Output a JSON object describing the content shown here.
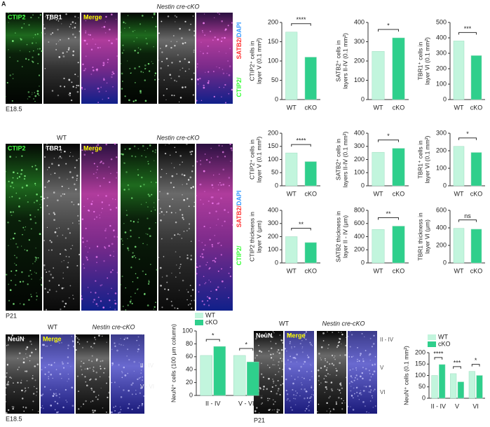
{
  "figure": {
    "label": "A",
    "e185": {
      "header": "Nestin cre-cKO",
      "channels": [
        "CTIP2",
        "TBR1",
        "Merge"
      ],
      "stage": "E18.5",
      "stain": [
        "CTIP2/",
        "TBR1/",
        "SATB2/",
        "DAPI"
      ]
    },
    "p21": {
      "headers": [
        "WT",
        "Nestin cre-cKO"
      ],
      "channels": [
        "CTIP2",
        "TBR1",
        "Merge"
      ],
      "stage": "P21",
      "stain": [
        "CTIP2/",
        "TBR1/",
        "SATB2/",
        "DAPI"
      ]
    },
    "neun_e185": {
      "headers": [
        "WT",
        "Nestin cre-cKO"
      ],
      "channels": [
        "NeuN",
        "Merge"
      ],
      "stage": "E18.5",
      "layers": [
        "II - IV",
        "V - VI"
      ]
    },
    "neun_p21": {
      "headers": [
        "WT",
        "Nestin cre-cKO"
      ],
      "channels": [
        "NeuN",
        "Merge"
      ],
      "stage": "P21",
      "layers": [
        "II - IV",
        "V",
        "VI"
      ]
    }
  },
  "chart_data": [
    {
      "type": "bar",
      "ylabel": [
        "CTIP2⁺ cells in",
        "layer V (0.1 mm²)"
      ],
      "categories": [
        "WT",
        "cKO"
      ],
      "values": [
        175,
        110
      ],
      "colors": [
        "#c2f5dd",
        "#2fcf8c"
      ],
      "significance": "****",
      "ylim": [
        0,
        200
      ],
      "yticks": [
        0,
        50,
        100,
        150,
        200
      ]
    },
    {
      "type": "bar",
      "ylabel": [
        "SATB2⁺ cells in",
        "layers II-IV (0.1 mm²)"
      ],
      "categories": [
        "WT",
        "cKO"
      ],
      "values": [
        250,
        320
      ],
      "colors": [
        "#c2f5dd",
        "#2fcf8c"
      ],
      "significance": "*",
      "ylim": [
        0,
        400
      ],
      "yticks": [
        0,
        100,
        200,
        300,
        400
      ]
    },
    {
      "type": "bar",
      "ylabel": [
        "TBR1⁺ cells in",
        "layer VI (0.1 mm²)"
      ],
      "categories": [
        "WT",
        "cKO"
      ],
      "values": [
        380,
        285
      ],
      "colors": [
        "#c2f5dd",
        "#2fcf8c"
      ],
      "significance": "***",
      "ylim": [
        0,
        500
      ],
      "yticks": [
        0,
        100,
        200,
        300,
        400,
        500
      ]
    },
    {
      "type": "bar",
      "ylabel": [
        "CTIP2⁺ cells in",
        "layer V (0.1 mm²)"
      ],
      "categories": [
        "WT",
        "cKO"
      ],
      "values": [
        125,
        92
      ],
      "colors": [
        "#c2f5dd",
        "#2fcf8c"
      ],
      "significance": "****",
      "ylim": [
        0,
        200
      ],
      "yticks": [
        0,
        50,
        100,
        150,
        200
      ]
    },
    {
      "type": "bar",
      "ylabel": [
        "SATB2⁺ cells in",
        "layers II-IV (0.1 mm²)"
      ],
      "categories": [
        "WT",
        "cKO"
      ],
      "values": [
        255,
        285
      ],
      "colors": [
        "#c2f5dd",
        "#2fcf8c"
      ],
      "significance": "*",
      "ylim": [
        0,
        400
      ],
      "yticks": [
        0,
        100,
        200,
        300,
        400
      ]
    },
    {
      "type": "bar",
      "ylabel": [
        "TBR1⁺ cells in",
        "layer VI (0.1 mm²)"
      ],
      "categories": [
        "WT",
        "cKO"
      ],
      "values": [
        225,
        190
      ],
      "colors": [
        "#c2f5dd",
        "#2fcf8c"
      ],
      "significance": "*",
      "ylim": [
        0,
        300
      ],
      "yticks": [
        0,
        100,
        200,
        300
      ]
    },
    {
      "type": "bar",
      "ylabel": [
        "CTIP2 thickness in",
        "layer V (μm)"
      ],
      "categories": [
        "WT",
        "cKO"
      ],
      "values": [
        200,
        155
      ],
      "colors": [
        "#c2f5dd",
        "#2fcf8c"
      ],
      "significance": "**",
      "ylim": [
        0,
        400
      ],
      "yticks": [
        0,
        100,
        200,
        300,
        400
      ]
    },
    {
      "type": "bar",
      "ylabel": [
        "SATB2 thickness in",
        "layer II - IV (μm)"
      ],
      "categories": [
        "WT",
        "cKO"
      ],
      "values": [
        510,
        560
      ],
      "colors": [
        "#c2f5dd",
        "#2fcf8c"
      ],
      "significance": "**",
      "ylim": [
        0,
        800
      ],
      "yticks": [
        0,
        200,
        400,
        600,
        800
      ]
    },
    {
      "type": "bar",
      "ylabel": [
        "TBR1 thickness in",
        "layer VI (μm)"
      ],
      "categories": [
        "WT",
        "cKO"
      ],
      "values": [
        395,
        385
      ],
      "colors": [
        "#c2f5dd",
        "#2fcf8c"
      ],
      "significance": "ns",
      "ylim": [
        0,
        600
      ],
      "yticks": [
        0,
        200,
        400,
        600
      ]
    },
    {
      "type": "grouped_bar",
      "ylabel": [
        "NeuN⁺ cells (100 μm column)"
      ],
      "categories": [
        "II - IV",
        "V - VI"
      ],
      "series": [
        {
          "name": "WT",
          "color": "#c2f5dd",
          "values": [
            62,
            62
          ]
        },
        {
          "name": "cKO",
          "color": "#2fcf8c",
          "values": [
            76,
            52
          ]
        }
      ],
      "significance": [
        "*",
        "*"
      ],
      "ylim": [
        0,
        100
      ],
      "yticks": [
        0,
        20,
        40,
        60,
        80,
        100
      ]
    },
    {
      "type": "grouped_bar",
      "ylabel": [
        "NeuN⁺ cells (0.1 mm²)"
      ],
      "categories": [
        "II - IV",
        "V",
        "VI"
      ],
      "series": [
        {
          "name": "WT",
          "color": "#c2f5dd",
          "values": [
            100,
            108,
            118
          ]
        },
        {
          "name": "cKO",
          "color": "#2fcf8c",
          "values": [
            148,
            72,
            100
          ]
        }
      ],
      "significance": [
        "****",
        "***",
        "*"
      ],
      "ylim": [
        0,
        200
      ],
      "yticks": [
        0,
        50,
        100,
        150,
        200
      ]
    }
  ]
}
